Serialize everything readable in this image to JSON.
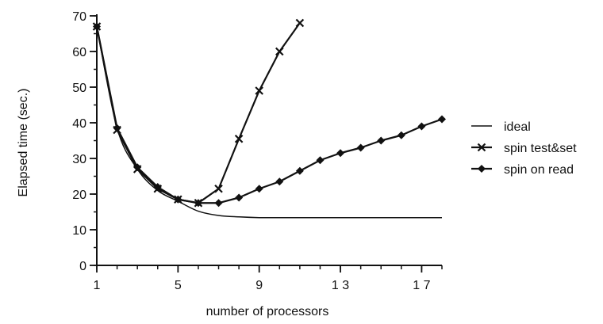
{
  "chart_data": {
    "type": "line",
    "xlabel": "number of processors",
    "ylabel": "Elapsed time (sec.)",
    "xlim": [
      1,
      18
    ],
    "ylim": [
      0,
      70
    ],
    "x_ticks": [
      1,
      5,
      9,
      13,
      17
    ],
    "x_tick_labels": [
      "1",
      "5",
      "9",
      "1 3",
      "1 7"
    ],
    "y_ticks": [
      0,
      10,
      20,
      30,
      40,
      50,
      60,
      70
    ],
    "y_tick_labels": [
      "0",
      "10",
      "20",
      "30",
      "40",
      "50",
      "60",
      "70"
    ],
    "grid": false,
    "legend_position": "right",
    "series": [
      {
        "name": "ideal",
        "marker": "none",
        "x": [
          1,
          2,
          3,
          4,
          5,
          6,
          7,
          8,
          9,
          10,
          11,
          12,
          13,
          14,
          15,
          16,
          17,
          18
        ],
        "values": [
          67,
          38.5,
          27,
          21,
          18,
          15.2,
          14,
          13.6,
          13.4,
          13.4,
          13.4,
          13.4,
          13.4,
          13.4,
          13.4,
          13.4,
          13.4,
          13.4
        ]
      },
      {
        "name": "spin test&set",
        "marker": "x",
        "x": [
          1,
          2,
          3,
          4,
          5,
          6,
          7,
          8,
          9,
          10,
          11
        ],
        "values": [
          67,
          38,
          27,
          21.5,
          18.5,
          17.5,
          21.5,
          35.5,
          49,
          60,
          68
        ]
      },
      {
        "name": "spin on read",
        "marker": "diamond",
        "x": [
          1,
          2,
          3,
          4,
          5,
          6,
          7,
          8,
          9,
          10,
          11,
          12,
          13,
          14,
          15,
          16,
          17,
          18
        ],
        "values": [
          67,
          38.5,
          27.5,
          22,
          18.5,
          17.5,
          17.5,
          19,
          21.5,
          23.5,
          26.5,
          29.5,
          31.5,
          33,
          35,
          36.5,
          39,
          41
        ]
      }
    ]
  }
}
